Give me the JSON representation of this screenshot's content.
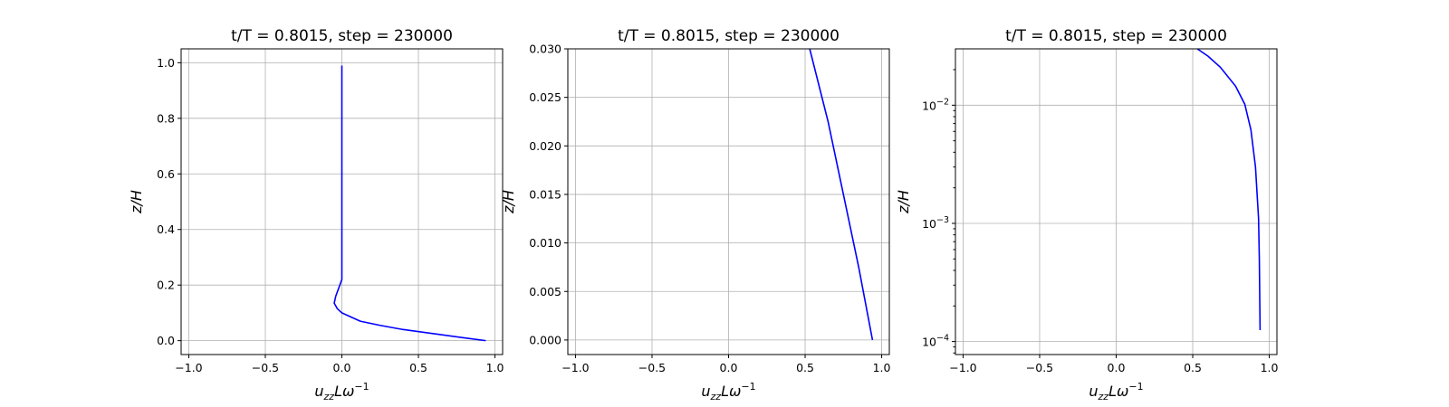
{
  "chart_data": [
    {
      "type": "line",
      "title": "t/T = 0.8015, step = 230000",
      "xlabel_base": "u",
      "xlabel_sub": "zz",
      "xlabel_mid": "L",
      "xlabel_omega": "ω",
      "xlabel_sup": "−1",
      "ylabel": "z/H",
      "xlim": [
        -1.05,
        1.05
      ],
      "ylim": [
        -0.05,
        1.05
      ],
      "yscale": "linear",
      "grid": true,
      "xticks": [
        -1.0,
        -0.5,
        0.0,
        0.5,
        1.0
      ],
      "xtick_labels": [
        "−1.0",
        "−0.5",
        "0.0",
        "0.5",
        "1.0"
      ],
      "yticks": [
        0.0,
        0.2,
        0.4,
        0.6,
        0.8,
        1.0
      ],
      "ytick_labels": [
        "0.0",
        "0.2",
        "0.4",
        "0.6",
        "0.8",
        "1.0"
      ],
      "series": [
        {
          "color": "#0000ff",
          "x": [
            0.94,
            0.8,
            0.6,
            0.4,
            0.25,
            0.12,
            0.04,
            0.0,
            -0.03,
            -0.05,
            -0.04,
            -0.02,
            0.0,
            0.0,
            0.0,
            0.0,
            0.0,
            0.0,
            0.0,
            0.0,
            0.0
          ],
          "y": [
            0.0,
            0.01,
            0.025,
            0.04,
            0.055,
            0.07,
            0.09,
            0.1,
            0.115,
            0.135,
            0.16,
            0.19,
            0.22,
            0.26,
            0.3,
            0.4,
            0.5,
            0.6,
            0.7,
            0.8,
            0.99
          ]
        }
      ]
    },
    {
      "type": "line",
      "title": "t/T = 0.8015, step = 230000",
      "xlabel_base": "u",
      "xlabel_sub": "zz",
      "xlabel_mid": "L",
      "xlabel_omega": "ω",
      "xlabel_sup": "−1",
      "ylabel": "z/H",
      "xlim": [
        -1.05,
        1.05
      ],
      "ylim": [
        -0.0015,
        0.03
      ],
      "yscale": "linear",
      "grid": true,
      "xticks": [
        -1.0,
        -0.5,
        0.0,
        0.5,
        1.0
      ],
      "xtick_labels": [
        "−1.0",
        "−0.5",
        "0.0",
        "0.5",
        "1.0"
      ],
      "yticks": [
        0.0,
        0.005,
        0.01,
        0.015,
        0.02,
        0.025,
        0.03
      ],
      "ytick_labels": [
        "0.000",
        "0.005",
        "0.010",
        "0.015",
        "0.020",
        "0.025",
        "0.030"
      ],
      "series": [
        {
          "color": "#0000ff",
          "x": [
            0.94,
            0.85,
            0.75,
            0.65,
            0.53
          ],
          "y": [
            0.0,
            0.0075,
            0.015,
            0.0225,
            0.03
          ]
        }
      ]
    },
    {
      "type": "line",
      "title": "t/T = 0.8015, step = 230000",
      "xlabel_base": "u",
      "xlabel_sub": "zz",
      "xlabel_mid": "L",
      "xlabel_omega": "ω",
      "xlabel_sup": "−1",
      "ylabel": "z/H",
      "xlim": [
        -1.05,
        1.05
      ],
      "ylim": [
        7.76e-05,
        0.03
      ],
      "yscale": "log",
      "grid": true,
      "xticks": [
        -1.0,
        -0.5,
        0.0,
        0.5,
        1.0
      ],
      "xtick_labels": [
        "−1.0",
        "−0.5",
        "0.0",
        "0.5",
        "1.0"
      ],
      "yticks": [
        0.0001,
        0.001,
        0.01
      ],
      "ytick_labels": [
        {
          "base": "10",
          "exp": "−4"
        },
        {
          "base": "10",
          "exp": "−3"
        },
        {
          "base": "10",
          "exp": "−2"
        }
      ],
      "series": [
        {
          "color": "#0000ff",
          "x": [
            0.94,
            0.935,
            0.93,
            0.91,
            0.88,
            0.84,
            0.78,
            0.68,
            0.6,
            0.53
          ],
          "y": [
            0.000125,
            0.0005,
            0.0011,
            0.003,
            0.0062,
            0.0102,
            0.0145,
            0.021,
            0.026,
            0.03
          ]
        }
      ]
    }
  ]
}
